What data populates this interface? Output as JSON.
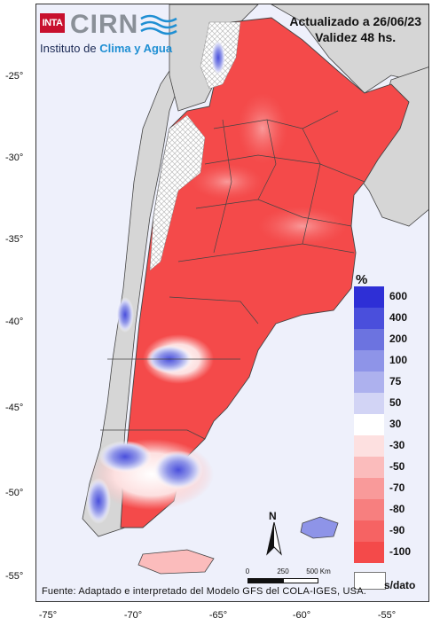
{
  "header": {
    "logo_inta": "INTA",
    "logo_cirn": "CIRN",
    "logo_institute_prefix": "Instituto de",
    "logo_institute_highlight": "Clima y Agua",
    "updated": "Actualizado a 26/06/23",
    "validity": "Validez 48 hs."
  },
  "axes": {
    "y_ticks": [
      "-25°",
      "-30°",
      "-35°",
      "-40°",
      "-45°",
      "-50°",
      "-55°"
    ],
    "x_ticks": [
      "-75°",
      "-70°",
      "-65°",
      "-60°",
      "-55°"
    ]
  },
  "legend": {
    "unit": "%",
    "items": [
      {
        "label": "600",
        "color": "#2e2fd6"
      },
      {
        "label": "400",
        "color": "#4a4fdc"
      },
      {
        "label": "200",
        "color": "#6c73e0"
      },
      {
        "label": "100",
        "color": "#8e94e8"
      },
      {
        "label": "75",
        "color": "#adb1ee"
      },
      {
        "label": "50",
        "color": "#d2d4f5"
      },
      {
        "label": "30",
        "color": "#ffffff"
      },
      {
        "label": "-30",
        "color": "#fde0e0"
      },
      {
        "label": "-50",
        "color": "#fbbcbc"
      },
      {
        "label": "-70",
        "color": "#f99a9a"
      },
      {
        "label": "-80",
        "color": "#f77f7f"
      },
      {
        "label": "-90",
        "color": "#f66363"
      },
      {
        "label": "-100",
        "color": "#f44a4a"
      }
    ],
    "no_data_label": "s/dato"
  },
  "scale_bar": {
    "labels": [
      "0",
      "250",
      "500 Km"
    ]
  },
  "north_label": "N",
  "source": "Fuente: Adaptado e interpretado del Modelo GFS del COLA-IGES, USA.",
  "colors": {
    "background": "#eef0fb",
    "land_outline": "#444444",
    "dry": "#f44a4a",
    "wet": "#2e2fd6"
  }
}
